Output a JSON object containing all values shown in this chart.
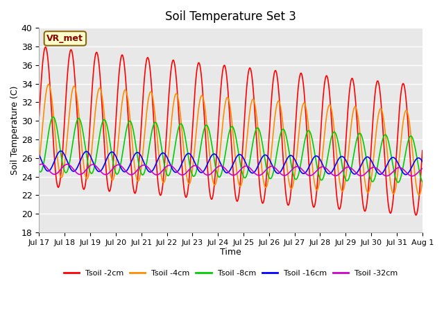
{
  "title": "Soil Temperature Set 3",
  "xlabel": "Time",
  "ylabel": "Soil Temperature (C)",
  "ylim": [
    18,
    40
  ],
  "plot_bg": "#e8e8e8",
  "annotation_text": "VR_met",
  "annotation_bg": "#ffffcc",
  "annotation_edge": "#8b6914",
  "x_tick_labels": [
    "Jul 17",
    "Jul 18",
    "Jul 19",
    "Jul 20",
    "Jul 21",
    "Jul 22",
    "Jul 23",
    "Jul 24",
    "Jul 25",
    "Jul 26",
    "Jul 27",
    "Jul 28",
    "Jul 29",
    "Jul 30",
    "Jul 31",
    "Aug 1"
  ],
  "series": [
    {
      "label": "Tsoil -2cm",
      "color": "#ff0000",
      "mean_s": 30.5,
      "mean_e": 26.8,
      "amp_s": 7.5,
      "amp_e": 7.0,
      "phase": 0.0
    },
    {
      "label": "Tsoil -4cm",
      "color": "#ff8c00",
      "mean_s": 29.0,
      "mean_e": 26.5,
      "amp_s": 5.0,
      "amp_e": 4.5,
      "phase": 0.12
    },
    {
      "label": "Tsoil -8cm",
      "color": "#00cc00",
      "mean_s": 27.5,
      "mean_e": 25.8,
      "amp_s": 3.0,
      "amp_e": 2.5,
      "phase": 0.3
    },
    {
      "label": "Tsoil -16cm",
      "color": "#0000ff",
      "mean_s": 25.7,
      "mean_e": 25.1,
      "amp_s": 1.1,
      "amp_e": 0.9,
      "phase": 0.6
    },
    {
      "label": "Tsoil -32cm",
      "color": "#cc00cc",
      "mean_s": 24.8,
      "mean_e": 24.5,
      "amp_s": 0.55,
      "amp_e": 0.45,
      "phase": 0.85
    }
  ]
}
